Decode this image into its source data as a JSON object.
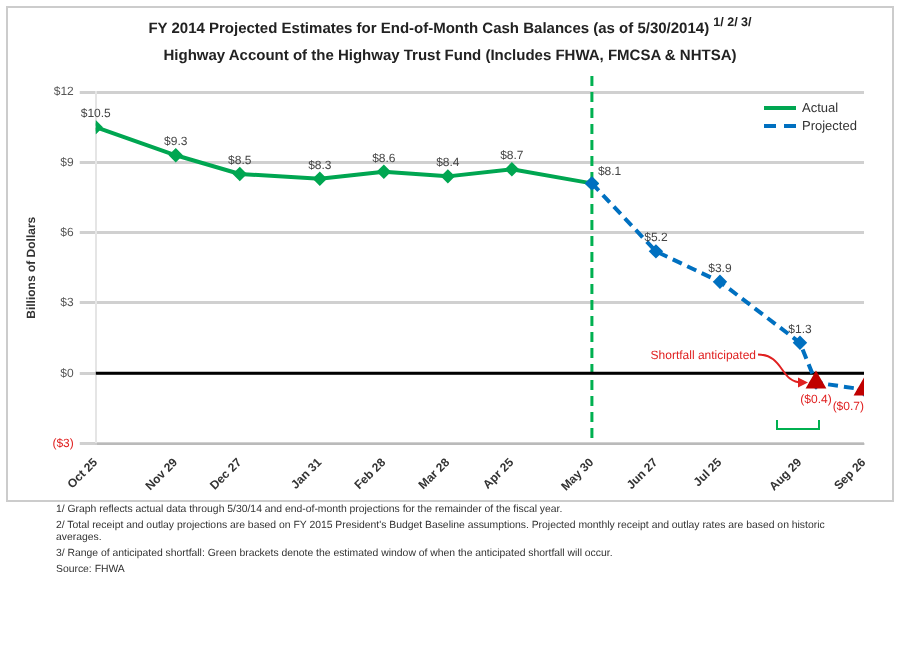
{
  "chart_data": {
    "type": "line",
    "title": "FY 2014 Projected Estimates for End-of-Month Cash Balances (as of 5/30/2014) $^{1/ 2/ 3/}$",
    "subtitle": "Highway Account of the Highway Trust Fund (Includes FHWA, FMCSA & NHTSA)",
    "ylabel": "Billions of Dollars",
    "ylim": [
      -3,
      12
    ],
    "yticks": [
      {
        "value": -3,
        "label": "($3)"
      },
      {
        "value": 0,
        "label": "$0"
      },
      {
        "value": 3,
        "label": "$3"
      },
      {
        "value": 6,
        "label": "$6"
      },
      {
        "value": 9,
        "label": "$9"
      },
      {
        "value": 12,
        "label": "$12"
      }
    ],
    "xlim": [
      "2013-10-25",
      "2014-09-26"
    ],
    "xticks": [
      {
        "value": "2013-10-25",
        "label": "Oct 25"
      },
      {
        "value": "2013-11-29",
        "label": "Nov 29"
      },
      {
        "value": "2013-12-27",
        "label": "Dec 27"
      },
      {
        "value": "2014-01-31",
        "label": "Jan 31"
      },
      {
        "value": "2014-02-28",
        "label": "Feb 28"
      },
      {
        "value": "2014-03-28",
        "label": "Mar 28"
      },
      {
        "value": "2014-04-25",
        "label": "Apr 25"
      },
      {
        "value": "2014-05-30",
        "label": "May 30"
      },
      {
        "value": "2014-06-27",
        "label": "Jun 27"
      },
      {
        "value": "2014-07-25",
        "label": "Jul 25"
      },
      {
        "value": "2014-08-29",
        "label": "Aug 29"
      },
      {
        "value": "2014-09-26",
        "label": "Sep 26"
      }
    ],
    "series": [
      {
        "name": "Actual",
        "color": "#00a651",
        "line_style": "solid",
        "marker": "diamond",
        "x": [
          "2013-10-25",
          "2013-11-29",
          "2013-12-27",
          "2014-01-31",
          "2014-02-28",
          "2014-03-28",
          "2014-04-25",
          "2014-05-30"
        ],
        "values": [
          10.5,
          9.3,
          8.5,
          8.3,
          8.6,
          8.4,
          8.7,
          8.1
        ],
        "value_labels": [
          "$10.5",
          "$9.3",
          "$8.5",
          "$8.3",
          "$8.6",
          "$8.4",
          "$8.7",
          "$8.1"
        ]
      },
      {
        "name": "Projected",
        "color": "#0070c0",
        "line_style": "dashed",
        "marker": "diamond",
        "x": [
          "2014-05-30",
          "2014-06-27",
          "2014-07-25",
          "2014-08-29",
          "2014-09-05",
          "2014-09-26"
        ],
        "values": [
          8.1,
          5.2,
          3.9,
          1.3,
          -0.4,
          -0.7
        ],
        "value_labels": [
          null,
          "$5.2",
          "$3.9",
          "$1.3",
          "($0.4)",
          "($0.7)"
        ]
      },
      {
        "type": "scatter",
        "color": "#c00000",
        "marker": "triangle",
        "x": [
          "2014-09-05",
          "2014-09-26"
        ],
        "values": [
          -0.4,
          -0.7
        ]
      }
    ],
    "ref_lines": [
      {
        "axis": "x",
        "value": "2014-05-30",
        "color": "#00b050",
        "line_style": "dashed"
      },
      {
        "axis": "y",
        "value": 0,
        "color": "#000000",
        "line_style": "solid"
      }
    ],
    "grid": "y",
    "legend": "top right",
    "annotations": [
      {
        "text": "Shortfall anticipated",
        "x": "2014-09-05",
        "y": -0.4
      },
      "1/ Graph reflects actual data through 5/30/14 and end-of-month projections for the remainder of the fiscal year.",
      "2/ Total receipt and outlay projections are based on FY 2015 President's Budget Baseline assumptions.  Projected monthly receipt and outlay rates are based on historic averages.",
      "3/ Range of anticipated shortfall: Green brackets denote the estimated window of when the anticipated shortfall will occur.",
      "Source: FHWA"
    ]
  }
}
